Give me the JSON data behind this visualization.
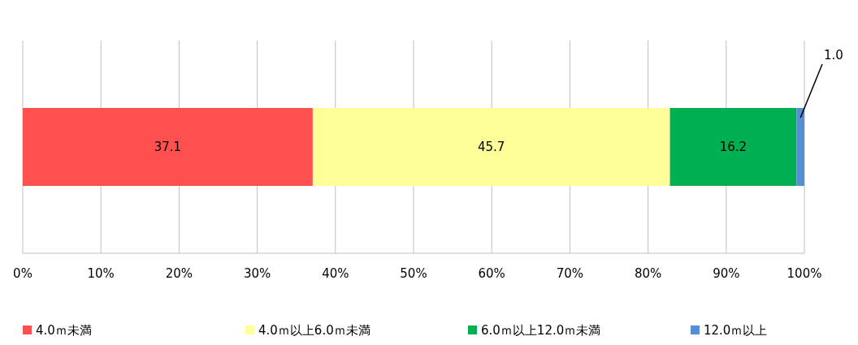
{
  "chart_data": {
    "type": "bar",
    "orientation": "horizontal",
    "stacked": true,
    "categories": [
      null
    ],
    "series": [
      {
        "name": "4.0ｍ未満",
        "color": "#ff5050",
        "values": [
          37.1
        ],
        "value_labels": [
          "37.1"
        ]
      },
      {
        "name": "4.0ｍ以上6.0ｍ未満",
        "color": "#ffff99",
        "values": [
          45.7
        ],
        "value_labels": [
          "45.7"
        ]
      },
      {
        "name": "6.0ｍ以上12.0ｍ未満",
        "color": "#00b050",
        "values": [
          16.2
        ],
        "value_labels": [
          "16.2"
        ]
      },
      {
        "name": "12.0ｍ以上",
        "color": "#558ed5",
        "values": [
          1.0
        ],
        "value_labels": [
          "1.0"
        ]
      }
    ],
    "xlim": [
      0,
      100
    ],
    "xticks": [
      {
        "value": 0,
        "label": "0%"
      },
      {
        "value": 10,
        "label": "10%"
      },
      {
        "value": 20,
        "label": "20%"
      },
      {
        "value": 30,
        "label": "30%"
      },
      {
        "value": 40,
        "label": "40%"
      },
      {
        "value": 50,
        "label": "50%"
      },
      {
        "value": 60,
        "label": "60%"
      },
      {
        "value": 70,
        "label": "70%"
      },
      {
        "value": 80,
        "label": "80%"
      },
      {
        "value": 90,
        "label": "90%"
      },
      {
        "value": 100,
        "label": "100%"
      }
    ],
    "grid": "x",
    "legend": "bottom"
  }
}
